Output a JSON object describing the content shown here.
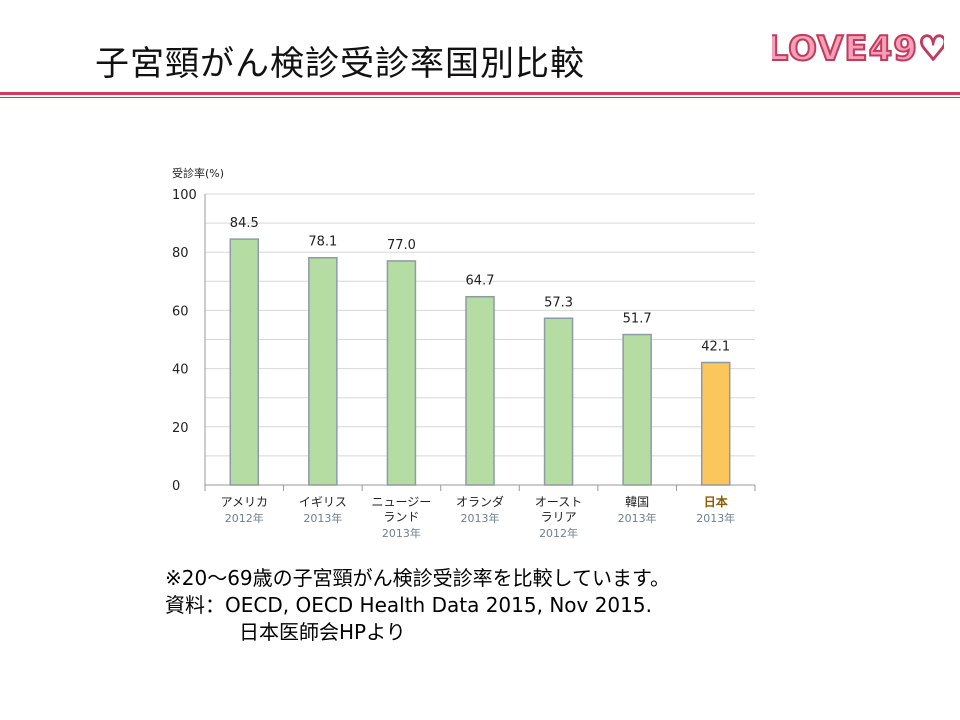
{
  "title": "子宮頸がん検診受診率国別比較",
  "logo_text": "LOVE49",
  "notes": [
    "※20〜69歳の子宮頸がん検診受診率を比較しています。",
    "資料：OECD, OECD Health Data 2015, Nov 2015.",
    "日本医師会HPより"
  ],
  "colors": {
    "accent_rule": "#d23c5a",
    "bar_green": "#b5dca3",
    "bar_green_edge": "#8e9aa6",
    "bar_highlight": "#fbc65b",
    "highlight_label": "#8c5a00",
    "year_label": "#6f7f8c",
    "grid": "#d8d8d8"
  },
  "chart_data": {
    "type": "bar",
    "ylabel": "受診率(%)",
    "ylim": [
      0,
      100
    ],
    "yticks": [
      0,
      20,
      40,
      60,
      80,
      100
    ],
    "grid": true,
    "categories": [
      {
        "name_lines": [
          "アメリカ"
        ],
        "year": "2012年"
      },
      {
        "name_lines": [
          "イギリス"
        ],
        "year": "2013年"
      },
      {
        "name_lines": [
          "ニュージー",
          "ランド"
        ],
        "year": "2013年"
      },
      {
        "name_lines": [
          "オランダ"
        ],
        "year": "2013年"
      },
      {
        "name_lines": [
          "オースト",
          "ラリア"
        ],
        "year": "2012年"
      },
      {
        "name_lines": [
          "韓国"
        ],
        "year": "2013年"
      },
      {
        "name_lines": [
          "日本"
        ],
        "year": "2013年",
        "highlight": true
      }
    ],
    "values": [
      84.5,
      78.1,
      77.0,
      64.7,
      57.3,
      51.7,
      42.1
    ],
    "value_labels": [
      "84.5",
      "78.1",
      "77.0",
      "64.7",
      "57.3",
      "51.7",
      "42.1"
    ]
  }
}
